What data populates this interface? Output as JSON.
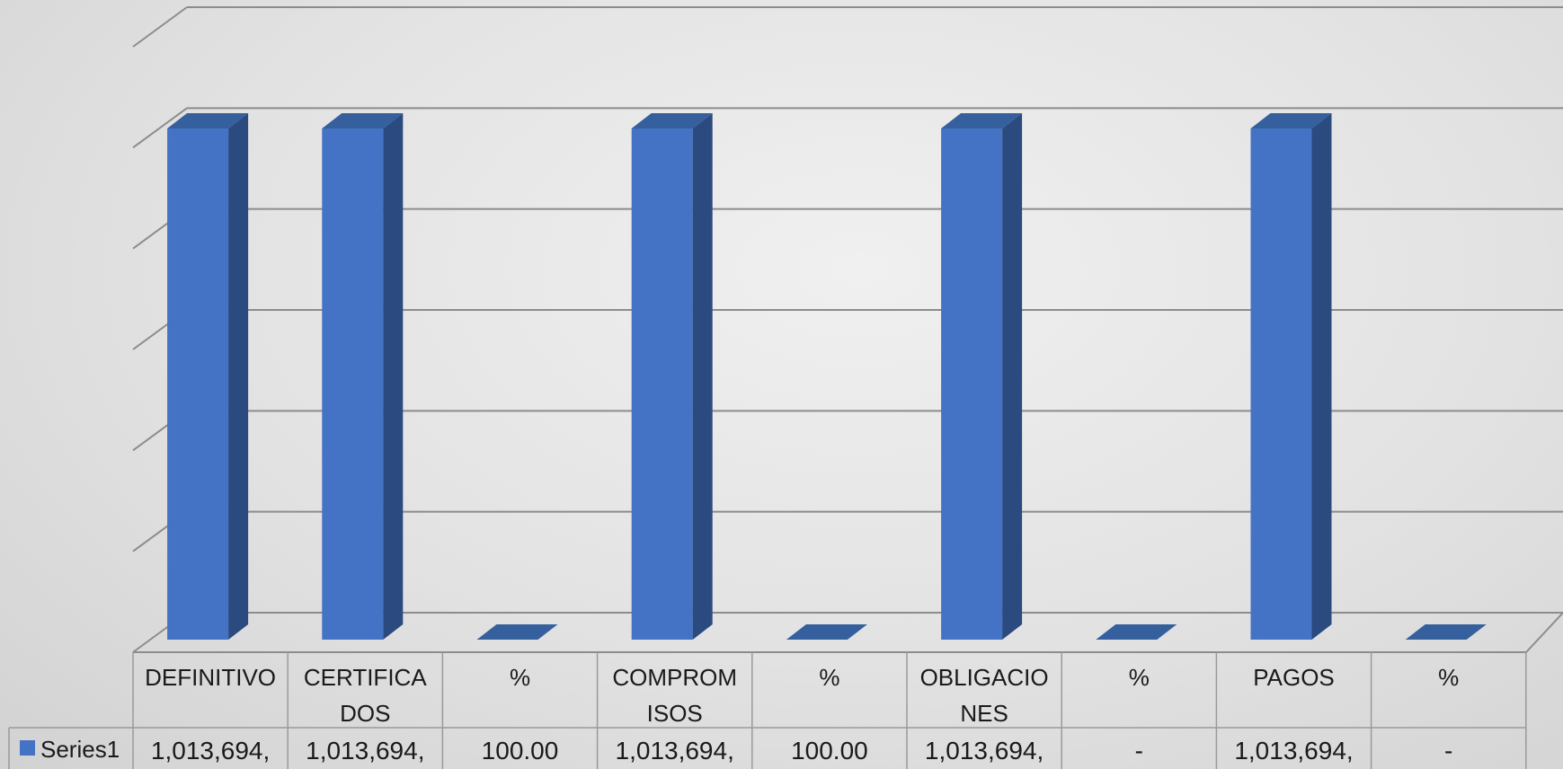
{
  "chart_data": {
    "type": "bar",
    "title": "",
    "xlabel": "",
    "ylabel": "",
    "ylim": [
      0,
      1216432.8
    ],
    "grid": true,
    "legend": "data-table",
    "colors": {
      "bar_front": "#4472C4",
      "bar_side": "#2A4A80",
      "bar_top": "#365F9E",
      "grid": "#8C8C8C"
    },
    "categories": [
      [
        "DEFINITIVO"
      ],
      [
        "CERTIFICA",
        "DOS"
      ],
      [
        "%"
      ],
      [
        "COMPROM",
        "ISOS"
      ],
      [
        "%"
      ],
      [
        "OBLIGACIO",
        "NES"
      ],
      [
        "%"
      ],
      [
        "PAGOS"
      ],
      [
        "%"
      ]
    ],
    "series": [
      {
        "name": "Series1",
        "values": [
          1013694,
          1013694,
          100,
          1013694,
          100,
          1013694,
          0,
          1013694,
          0
        ],
        "table_labels": [
          "1,013,694,",
          "1,013,694,",
          "100.00",
          "1,013,694,",
          "100.00",
          "1,013,694,",
          "-",
          "1,013,694,",
          "-"
        ]
      }
    ]
  }
}
